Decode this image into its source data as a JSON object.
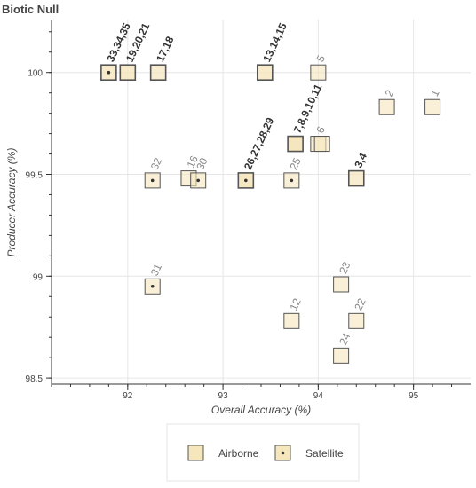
{
  "chart_data": {
    "type": "scatter",
    "title": "Biotic Null",
    "xlabel": "Overall Accuracy (%)",
    "ylabel": "Producer Accuracy (%)",
    "xlim": [
      91.2,
      95.6
    ],
    "ylim": [
      98.47,
      100.26
    ],
    "xticks": [
      92,
      93,
      94,
      95
    ],
    "yticks": [
      98.5,
      99,
      99.5,
      100
    ],
    "xtick_labels": [
      "92",
      "93",
      "94",
      "95"
    ],
    "ytick_labels": [
      "98.5",
      "99",
      "99.5",
      "100"
    ],
    "grid": true,
    "colors": {
      "fill": "#f5e6bc",
      "stroke": "#555555",
      "text": "#888888",
      "text_dark": "#333333"
    },
    "series": [
      {
        "name": "Airborne",
        "points": [
          {
            "x": 95.2,
            "y": 99.83,
            "label": "1",
            "count": 1
          },
          {
            "x": 94.72,
            "y": 99.83,
            "label": "2",
            "count": 1
          },
          {
            "x": 94.4,
            "y": 99.48,
            "label": "3,4",
            "count": 2
          },
          {
            "x": 94.0,
            "y": 100.0,
            "label": "5",
            "count": 1
          },
          {
            "x": 94.0,
            "y": 99.65,
            "label": "6",
            "count": 1
          },
          {
            "x": 93.76,
            "y": 99.65,
            "label": "7,8,9,10,11",
            "count": 5
          },
          {
            "x": 93.72,
            "y": 98.78,
            "label": "12",
            "count": 1
          },
          {
            "x": 93.44,
            "y": 100.0,
            "label": "13,14,15",
            "count": 3
          },
          {
            "x": 92.64,
            "y": 99.48,
            "label": "16",
            "count": 1
          },
          {
            "x": 92.32,
            "y": 100.0,
            "label": "17,18",
            "count": 2
          },
          {
            "x": 92.0,
            "y": 100.0,
            "label": "19,20,21",
            "count": 3
          },
          {
            "x": 94.4,
            "y": 98.78,
            "label": "22",
            "count": 1
          },
          {
            "x": 94.24,
            "y": 98.96,
            "label": "23",
            "count": 1
          },
          {
            "x": 94.24,
            "y": 98.61,
            "label": "24",
            "count": 1
          },
          {
            "x": 94.04,
            "y": 99.65,
            "label": "",
            "count": 1
          }
        ]
      },
      {
        "name": "Satellite",
        "points": [
          {
            "x": 93.72,
            "y": 99.47,
            "label": "25",
            "count": 1
          },
          {
            "x": 93.24,
            "y": 99.47,
            "label": "26,27,28,29",
            "count": 4
          },
          {
            "x": 92.74,
            "y": 99.47,
            "label": "30",
            "count": 1
          },
          {
            "x": 92.26,
            "y": 98.95,
            "label": "31",
            "count": 1
          },
          {
            "x": 92.26,
            "y": 99.47,
            "label": "32",
            "count": 1
          },
          {
            "x": 91.8,
            "y": 100.0,
            "label": "33,34,35",
            "count": 3
          }
        ]
      }
    ],
    "legend": {
      "placement": "bottom-center",
      "entries": [
        "Airborne",
        "Satellite"
      ]
    }
  }
}
